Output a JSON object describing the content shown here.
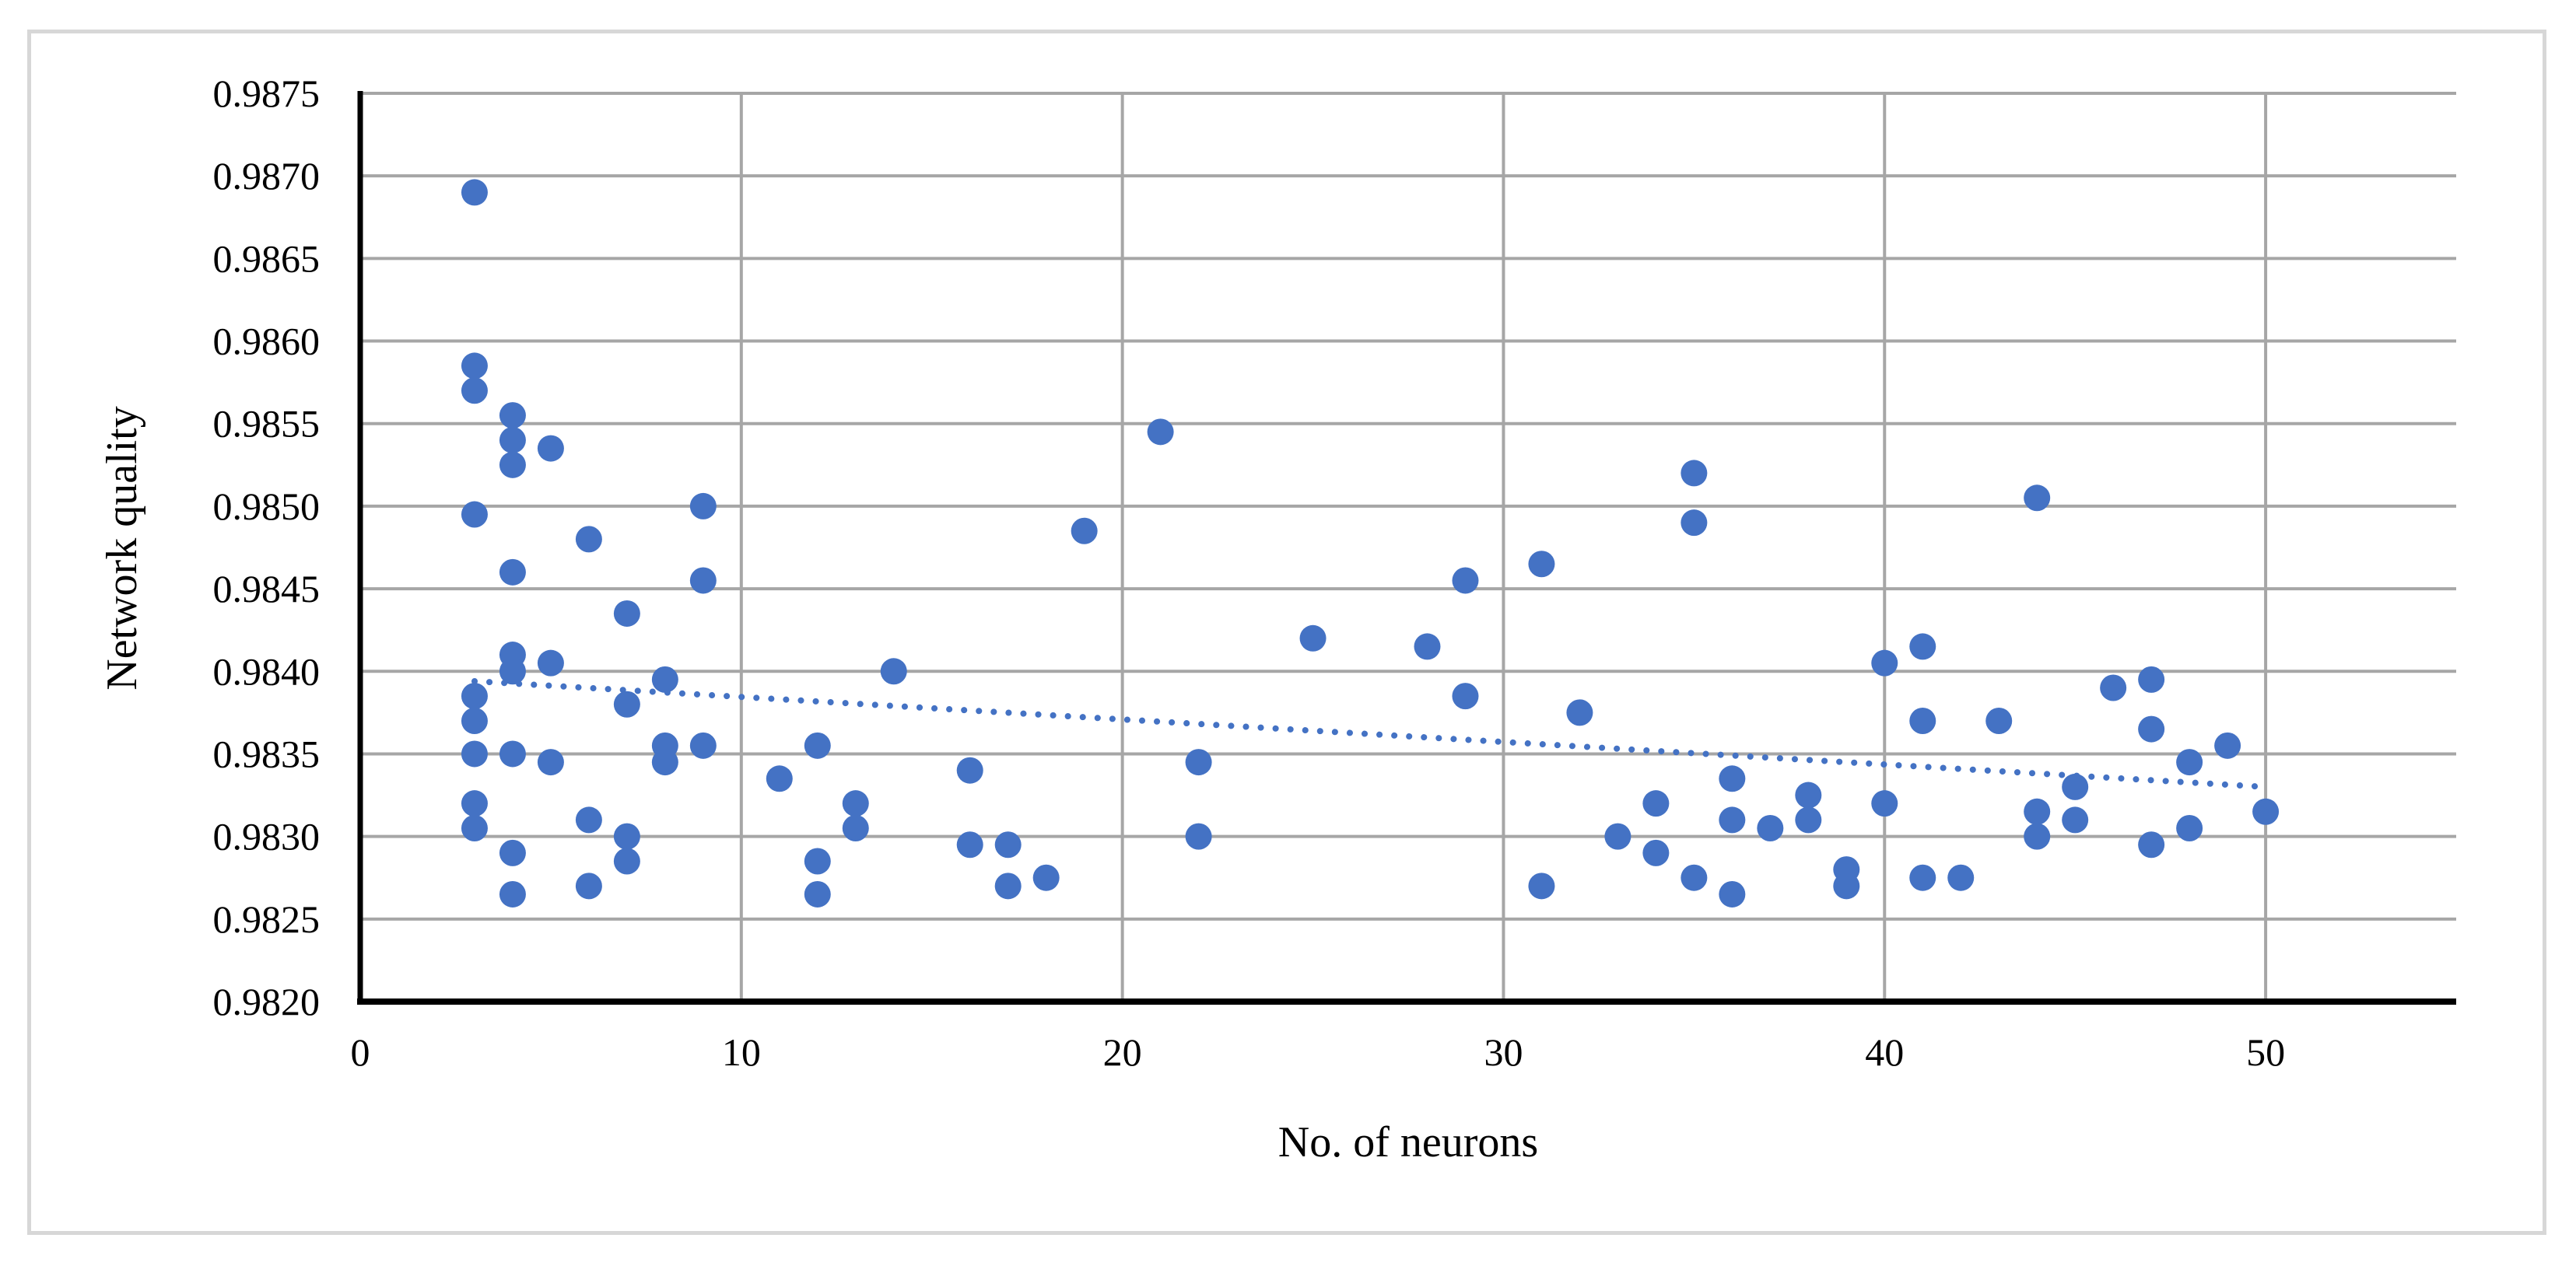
{
  "frame": {
    "border_color": "#d7d7d7"
  },
  "chart_data": {
    "type": "scatter",
    "title": "",
    "xlabel": "No. of neurons",
    "ylabel": "Network quality",
    "xlim": [
      0,
      55
    ],
    "ylim": [
      0.982,
      0.9875
    ],
    "x_ticks": [
      0,
      10,
      20,
      30,
      40,
      50
    ],
    "y_tick_labels": [
      "0.9875",
      "0.9870",
      "0.9865",
      "0.9860",
      "0.9855",
      "0.9850",
      "0.9845",
      "0.9840",
      "0.9835",
      "0.9830",
      "0.9825",
      "0.9820"
    ],
    "y_tick_values": [
      0.9875,
      0.987,
      0.9865,
      0.986,
      0.9855,
      0.985,
      0.9845,
      0.984,
      0.9835,
      0.983,
      0.9825,
      0.982
    ],
    "grid": true,
    "legend": false,
    "marker_color": "#4472c4",
    "trendline_color": "#4472c4",
    "grid_color": "#a6a6a6",
    "axis_color": "#000000",
    "trendline": {
      "style": "dotted",
      "x_start": 3,
      "y_start": 0.98394,
      "x_end": 50,
      "y_end": 0.9833
    },
    "points": [
      [
        3,
        0.9869
      ],
      [
        3,
        0.98585
      ],
      [
        3,
        0.9857
      ],
      [
        3,
        0.98495
      ],
      [
        3,
        0.98385
      ],
      [
        3,
        0.9837
      ],
      [
        3,
        0.9835
      ],
      [
        3,
        0.9832
      ],
      [
        3,
        0.98305
      ],
      [
        4,
        0.98555
      ],
      [
        4,
        0.9854
      ],
      [
        4,
        0.98525
      ],
      [
        4,
        0.9846
      ],
      [
        4,
        0.9841
      ],
      [
        4,
        0.984
      ],
      [
        4,
        0.9835
      ],
      [
        4,
        0.9829
      ],
      [
        4,
        0.98265
      ],
      [
        5,
        0.98535
      ],
      [
        5,
        0.98405
      ],
      [
        5,
        0.98345
      ],
      [
        6,
        0.9848
      ],
      [
        6,
        0.9831
      ],
      [
        6,
        0.9827
      ],
      [
        7,
        0.98435
      ],
      [
        7,
        0.9838
      ],
      [
        7,
        0.983
      ],
      [
        7,
        0.98285
      ],
      [
        8,
        0.98395
      ],
      [
        8,
        0.98355
      ],
      [
        8,
        0.98345
      ],
      [
        9,
        0.985
      ],
      [
        9,
        0.98455
      ],
      [
        9,
        0.98355
      ],
      [
        11,
        0.98335
      ],
      [
        12,
        0.98355
      ],
      [
        12,
        0.98285
      ],
      [
        12,
        0.98265
      ],
      [
        13,
        0.9832
      ],
      [
        13,
        0.98305
      ],
      [
        14,
        0.984
      ],
      [
        16,
        0.9834
      ],
      [
        16,
        0.98295
      ],
      [
        17,
        0.98295
      ],
      [
        17,
        0.9827
      ],
      [
        18,
        0.98275
      ],
      [
        19,
        0.98485
      ],
      [
        21,
        0.98545
      ],
      [
        22,
        0.98345
      ],
      [
        22,
        0.983
      ],
      [
        25,
        0.9842
      ],
      [
        28,
        0.98415
      ],
      [
        29,
        0.98455
      ],
      [
        29,
        0.98385
      ],
      [
        31,
        0.98465
      ],
      [
        31,
        0.9827
      ],
      [
        32,
        0.98375
      ],
      [
        33,
        0.983
      ],
      [
        34,
        0.9832
      ],
      [
        34,
        0.9829
      ],
      [
        35,
        0.9852
      ],
      [
        35,
        0.9849
      ],
      [
        35,
        0.98275
      ],
      [
        36,
        0.98335
      ],
      [
        36,
        0.9831
      ],
      [
        36,
        0.98265
      ],
      [
        37,
        0.98305
      ],
      [
        38,
        0.98325
      ],
      [
        38,
        0.9831
      ],
      [
        39,
        0.9828
      ],
      [
        39,
        0.9827
      ],
      [
        40,
        0.98405
      ],
      [
        40,
        0.9832
      ],
      [
        41,
        0.98415
      ],
      [
        41,
        0.9837
      ],
      [
        41,
        0.98275
      ],
      [
        42,
        0.98275
      ],
      [
        43,
        0.9837
      ],
      [
        44,
        0.98505
      ],
      [
        44,
        0.98315
      ],
      [
        44,
        0.983
      ],
      [
        45,
        0.9833
      ],
      [
        45,
        0.9831
      ],
      [
        46,
        0.9839
      ],
      [
        47,
        0.98395
      ],
      [
        47,
        0.98365
      ],
      [
        47,
        0.98295
      ],
      [
        48,
        0.98345
      ],
      [
        48,
        0.98305
      ],
      [
        49,
        0.98355
      ],
      [
        50,
        0.98315
      ]
    ]
  }
}
